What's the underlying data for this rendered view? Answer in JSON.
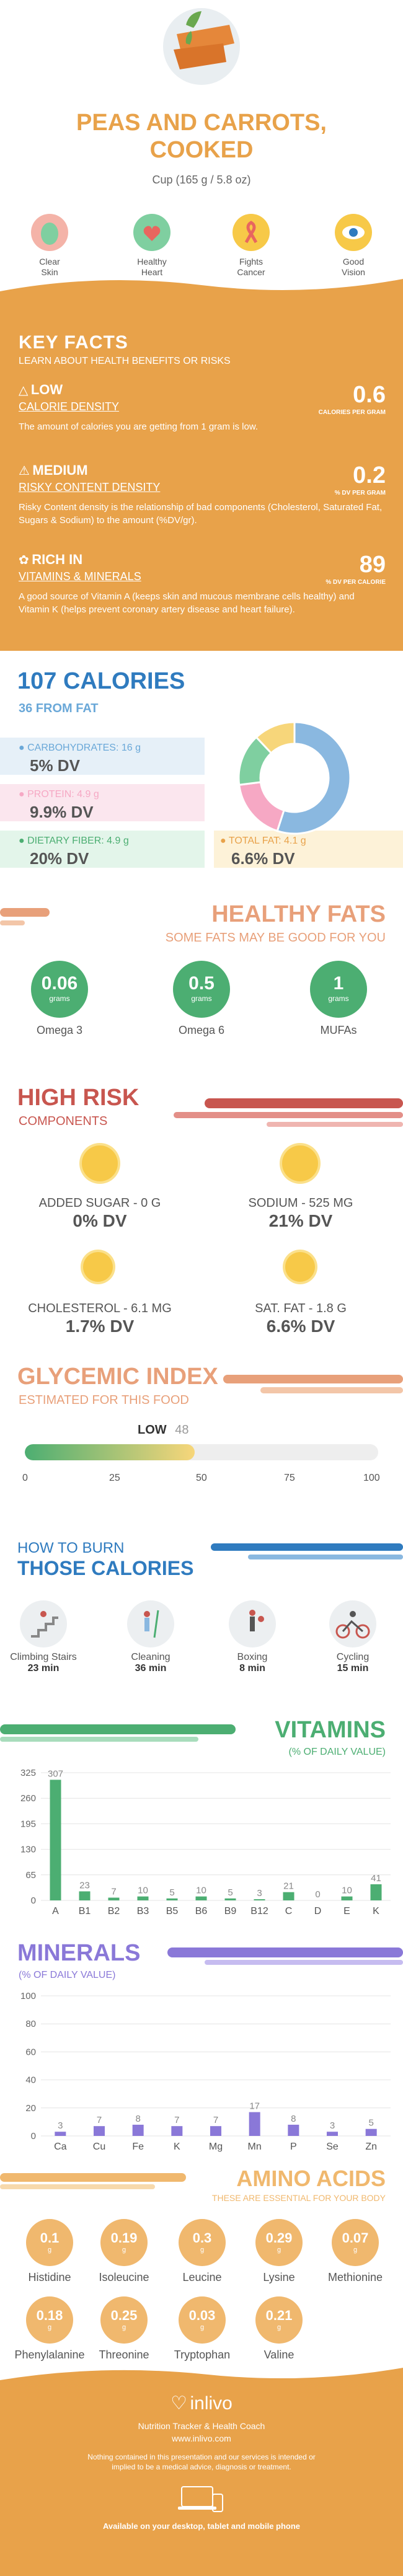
{
  "header": {
    "title_line1": "PEAS AND CARROTS,",
    "title_line2": "COOKED",
    "serving": "Cup (165 g / 5.8 oz)"
  },
  "benefits": [
    {
      "label1": "Clear",
      "label2": "Skin",
      "icon": "skin-icon",
      "color": "#4cae72"
    },
    {
      "label1": "Healthy",
      "label2": "Heart",
      "icon": "heart-icon",
      "color": "#e8665f"
    },
    {
      "label1": "Fights",
      "label2": "Cancer",
      "icon": "ribbon-icon",
      "color": "#e8665f"
    },
    {
      "label1": "Good",
      "label2": "Vision",
      "icon": "eye-icon",
      "color": "#f7c948"
    }
  ],
  "key_facts": {
    "title": "KEY FACTS",
    "subtitle": "LEARN ABOUT HEALTH BENEFITS OR RISKS",
    "items": [
      {
        "tag": "LOW",
        "sub": "CALORIE DENSITY",
        "value": "0.6",
        "unit": "CALORIES PER GRAM",
        "desc": "The amount of calories you are getting from 1 gram is low.",
        "icon": "flame-icon"
      },
      {
        "tag": "MEDIUM",
        "sub": "RISKY CONTENT DENSITY",
        "value": "0.2",
        "unit": "% DV PER GRAM",
        "desc": "Risky Content density is the relationship of bad components (Cholesterol, Saturated Fat, Sugars & Sodium) to the amount (%DV/gr).",
        "icon": "warning-icon"
      },
      {
        "tag": "RICH  IN",
        "sub": "VITAMINS & MINERALS",
        "value": "89",
        "unit": "% DV PER CALORIE",
        "desc": "A good source of Vitamin A (keeps skin and mucous membrane cells healthy) and Vitamin K (helps prevent coronary artery disease and heart failure).",
        "icon": "leaf-icon"
      }
    ]
  },
  "calories": {
    "title": "107 CALORIES",
    "subtitle": "36 FROM FAT",
    "carbs_label": "CARBOHYDRATES: 16 g",
    "carbs_dv": "5% DV",
    "protein_label": "PROTEIN: 4.9 g",
    "protein_dv": "9.9% DV",
    "fiber_label": "DIETARY FIBER: 4.9 g",
    "fiber_dv": "20% DV",
    "fat_label": "TOTAL FAT: 4.1 g",
    "fat_dv": "6.6% DV",
    "colors": {
      "carbs": "#8ab8e0",
      "protein": "#f6a8c4",
      "fiber": "#7fcfa0",
      "fat": "#f7d67a"
    },
    "donut_shares": [
      0.55,
      0.18,
      0.15,
      0.12
    ]
  },
  "healthy_fats": {
    "title": "HEALTHY FATS",
    "subtitle": "SOME FATS MAY BE GOOD FOR YOU",
    "items": [
      {
        "value": "0.06",
        "unit": "grams",
        "label": "Omega 3"
      },
      {
        "value": "0.5",
        "unit": "grams",
        "label": "Omega 6"
      },
      {
        "value": "1",
        "unit": "grams",
        "label": "MUFAs"
      }
    ]
  },
  "high_risk": {
    "title": "HIGH RISK",
    "subtitle": "COMPONENTS",
    "items": [
      {
        "label": "ADDED SUGAR - 0 g",
        "dv": "0% DV"
      },
      {
        "label": "SODIUM - 525 mg",
        "dv": "21% DV"
      },
      {
        "label": "CHOLESTEROL - 6.1 mg",
        "dv": "1.7% DV"
      },
      {
        "label": "SAT. FAT - 1.8 g",
        "dv": "6.6% DV"
      }
    ]
  },
  "glycemic": {
    "title": "GLYCEMIC INDEX",
    "subtitle": "ESTIMATED FOR THIS FOOD",
    "level": "LOW",
    "value": "48",
    "value_num": 48,
    "ticks": [
      "0",
      "25",
      "50",
      "75",
      "100"
    ]
  },
  "burn": {
    "title1": "HOW TO BURN",
    "title2": "THOSE CALORIES",
    "activities": [
      {
        "name": "Climbing Stairs",
        "time": "23 min",
        "icon": "stairs-icon"
      },
      {
        "name": "Cleaning",
        "time": "36 min",
        "icon": "cleaning-icon"
      },
      {
        "name": "Boxing",
        "time": "8 min",
        "icon": "boxing-icon"
      },
      {
        "name": "Cycling",
        "time": "15 min",
        "icon": "cycling-icon"
      }
    ]
  },
  "vitamins": {
    "title": "VITAMINS",
    "subtitle": "(% OF DAILY VALUE)",
    "yticks": [
      "325",
      "260",
      "195",
      "130",
      "65",
      "0"
    ]
  },
  "minerals": {
    "title": "MINERALS",
    "subtitle": "(% OF DAILY VALUE)",
    "yticks": [
      "100",
      "80",
      "60",
      "40",
      "20",
      "0"
    ]
  },
  "chart_data": [
    {
      "type": "bar",
      "title": "VITAMINS",
      "ylabel": "(% OF DAILY VALUE)",
      "categories": [
        "A",
        "B1",
        "B2",
        "B3",
        "B5",
        "B6",
        "B9",
        "B12",
        "C",
        "D",
        "E",
        "K"
      ],
      "values": [
        307,
        23,
        7,
        10,
        5,
        10,
        5,
        3,
        21,
        0,
        10,
        41
      ],
      "ylim": [
        0,
        325
      ]
    },
    {
      "type": "bar",
      "title": "MINERALS",
      "ylabel": "(% OF DAILY VALUE)",
      "categories": [
        "Ca",
        "Cu",
        "Fe",
        "K",
        "Mg",
        "Mn",
        "P",
        "Se",
        "Zn"
      ],
      "values": [
        3,
        7,
        8,
        7,
        7,
        17,
        8,
        3,
        5
      ],
      "ylim": [
        0,
        100
      ]
    }
  ],
  "amino": {
    "title": "AMINO ACIDS",
    "subtitle": "THESE ARE ESSENTIAL FOR YOUR BODY",
    "items": [
      {
        "value": "0.1",
        "unit": "g",
        "label": "Histidine"
      },
      {
        "value": "0.19",
        "unit": "g",
        "label": "Isoleucine"
      },
      {
        "value": "0.3",
        "unit": "g",
        "label": "Leucine"
      },
      {
        "value": "0.29",
        "unit": "g",
        "label": "Lysine"
      },
      {
        "value": "0.07",
        "unit": "g",
        "label": "Methionine"
      },
      {
        "value": "0.18",
        "unit": "g",
        "label": "Phenylalanine"
      },
      {
        "value": "0.25",
        "unit": "g",
        "label": "Threonine"
      },
      {
        "value": "0.03",
        "unit": "g",
        "label": "Tryptophan"
      },
      {
        "value": "0.21",
        "unit": "g",
        "label": "Valine"
      }
    ]
  },
  "footer": {
    "brand": "inlivo",
    "tagline": "Nutrition Tracker & Health Coach",
    "url": "www.inlivo.com",
    "disclaimer": "Nothing contained in this presentation and our services is intended or implied to be a medical advice, diagnosis or treatment.",
    "available": "Available on your desktop, tablet and mobile phone"
  },
  "colors": {
    "orange": "#e8a24a",
    "green": "#4cae72",
    "blue": "#2f7bbf",
    "red": "#c8564f",
    "salmon": "#e8a07a",
    "purple": "#8a78d8"
  }
}
